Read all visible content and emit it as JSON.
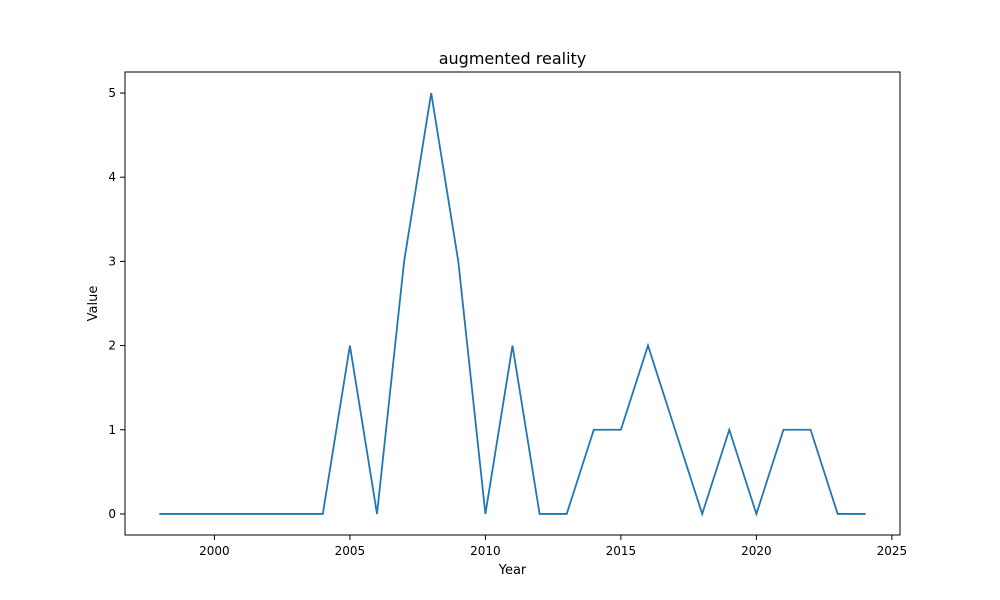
{
  "chart_data": {
    "type": "line",
    "title": "augmented reality",
    "xlabel": "Year",
    "ylabel": "Value",
    "x": [
      1998,
      1999,
      2000,
      2001,
      2002,
      2003,
      2004,
      2005,
      2006,
      2007,
      2008,
      2009,
      2010,
      2011,
      2012,
      2013,
      2014,
      2015,
      2016,
      2017,
      2018,
      2019,
      2020,
      2021,
      2022,
      2023,
      2024
    ],
    "series": [
      {
        "values": [
          0,
          0,
          0,
          0,
          0,
          0,
          0,
          2,
          0,
          3,
          5,
          3,
          0,
          2,
          0,
          0,
          1,
          1,
          2,
          1,
          0,
          1,
          0,
          1,
          1,
          0,
          0
        ],
        "color": "#1f77b4"
      }
    ],
    "xlim": [
      1996.7,
      2025.3
    ],
    "ylim": [
      -0.25,
      5.25
    ],
    "xticks": [
      "2000",
      "2005",
      "2010",
      "2015",
      "2020",
      "2025"
    ],
    "yticks": [
      "0",
      "1",
      "2",
      "3",
      "4",
      "5"
    ],
    "grid": false,
    "legend": "none"
  }
}
